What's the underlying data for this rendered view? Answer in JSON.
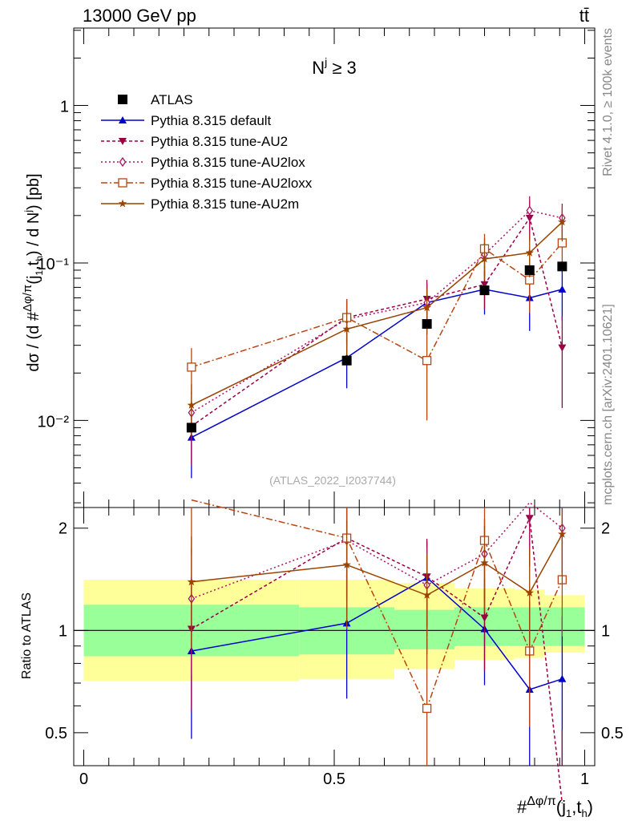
{
  "header": {
    "energy": "13000 GeV pp",
    "process": "tt̄"
  },
  "side_labels": {
    "rivet": "Rivet 4.1.0, ≥ 100k events",
    "site": "mcplots.cern.ch [arXiv:2401.10621]"
  },
  "watermark": "(ATLAS_2022_I2037744)",
  "chart_data": {
    "type": "line",
    "title": "N^j ≥ 3",
    "ylabel": "dσ / (d #Δφ/π(j1,th) / d N^j) [pb]",
    "xlabel": "#Δφ/π(j1,th)",
    "ratio_ylabel": "Ratio to ATLAS",
    "xlim": [
      -0.02,
      1.02
    ],
    "ylim": [
      0.0028,
      3.1
    ],
    "ratio_ylim": [
      0.4,
      2.3
    ],
    "yscale": "log",
    "x": [
      0.215,
      0.525,
      0.685,
      0.8,
      0.89,
      0.955
    ],
    "bin_edges": [
      0,
      0.43,
      0.62,
      0.74,
      0.86,
      0.92,
      1.0
    ],
    "x_ticks": [
      {
        "value": 0,
        "label": "0"
      },
      {
        "value": 0.5,
        "label": "0.5"
      },
      {
        "value": 1,
        "label": "1"
      }
    ],
    "y_ticks": [
      {
        "value": 1,
        "label": "1"
      },
      {
        "value": 0.1,
        "label": "10⁻¹"
      },
      {
        "value": 0.01,
        "label": "10⁻²"
      }
    ],
    "ratio_ticks": [
      {
        "value": 2,
        "label": "2"
      },
      {
        "value": 1,
        "label": "1"
      },
      {
        "value": 0.5,
        "label": "0.5"
      }
    ],
    "data": {
      "name": "ATLAS",
      "values": [
        0.009,
        0.024,
        0.041,
        0.067,
        0.09,
        0.095
      ],
      "color": "#000000"
    },
    "bands": {
      "inner": [
        [
          0.84,
          1.19
        ],
        [
          0.85,
          1.17
        ],
        [
          0.88,
          1.15
        ],
        [
          0.9,
          1.17
        ],
        [
          0.9,
          1.17
        ],
        [
          0.9,
          1.17
        ]
      ],
      "outer": [
        [
          0.71,
          1.41
        ],
        [
          0.72,
          1.41
        ],
        [
          0.77,
          1.38
        ],
        [
          0.82,
          1.33
        ],
        [
          0.83,
          1.32
        ],
        [
          0.86,
          1.27
        ]
      ],
      "inner_color": "#99ff99",
      "outer_color": "#ffff99"
    },
    "series": [
      {
        "name": "Pythia 8.315 default",
        "color": "#0000cc",
        "dash": "",
        "marker": "triangle-up",
        "values": [
          0.0078,
          0.025,
          0.056,
          0.068,
          0.06,
          0.068
        ],
        "err": [
          0.0035,
          0.009,
          0.018,
          0.021,
          0.023,
          0.025
        ],
        "ratio": [
          0.87,
          1.05,
          1.43,
          1.01,
          0.67,
          0.72
        ],
        "ratio_err": [
          0.39,
          0.42,
          0.4,
          0.32,
          0.32,
          0.38
        ]
      },
      {
        "name": "Pythia 8.315 tune-AU2",
        "color": "#990044",
        "dash": "4,3",
        "marker": "triangle-down",
        "values": [
          0.0092,
          0.045,
          0.059,
          0.073,
          0.193,
          0.029
        ],
        "err": [
          0.004,
          0.014,
          0.019,
          0.022,
          0.055,
          0.017
        ],
        "ratio": [
          1.01,
          1.87,
          1.44,
          1.09,
          2.14,
          0.31
        ],
        "ratio_err": [
          0.43,
          0.6,
          0.42,
          0.33,
          0.6,
          0.2
        ]
      },
      {
        "name": "Pythia 8.315 tune-AU2lox",
        "color": "#aa1166",
        "dash": "2,3",
        "marker": "diamond",
        "values": [
          0.0112,
          0.044,
          0.056,
          0.113,
          0.215,
          0.193
        ],
        "err": [
          0.004,
          0.014,
          0.018,
          0.03,
          0.05,
          0.045
        ],
        "ratio": [
          1.24,
          1.84,
          1.36,
          1.68,
          2.38,
          2.0
        ],
        "ratio_err": [
          0.5,
          0.6,
          0.4,
          0.45,
          0.6,
          0.52
        ]
      },
      {
        "name": "Pythia 8.315 tune-AU2loxx",
        "color": "#bb4411",
        "dash": "8,3,2,3",
        "marker": "square-open",
        "values": [
          0.0218,
          0.045,
          0.024,
          0.123,
          0.078,
          0.134
        ],
        "err": [
          0.007,
          0.014,
          0.014,
          0.03,
          0.03,
          0.04
        ],
        "ratio": [
          2.42,
          1.87,
          0.59,
          1.84,
          0.87,
          1.41
        ],
        "ratio_err": [
          0.75,
          0.62,
          0.36,
          0.5,
          0.35,
          0.45
        ]
      },
      {
        "name": "Pythia 8.315 tune-AU2m",
        "color": "#994400",
        "dash": "",
        "marker": "star",
        "values": [
          0.0125,
          0.038,
          0.052,
          0.106,
          0.116,
          0.182
        ],
        "err": [
          0.0045,
          0.012,
          0.017,
          0.028,
          0.035,
          0.045
        ],
        "ratio": [
          1.39,
          1.56,
          1.27,
          1.58,
          1.29,
          1.92
        ],
        "ratio_err": [
          0.5,
          0.55,
          0.42,
          0.45,
          0.45,
          0.55
        ]
      }
    ]
  }
}
